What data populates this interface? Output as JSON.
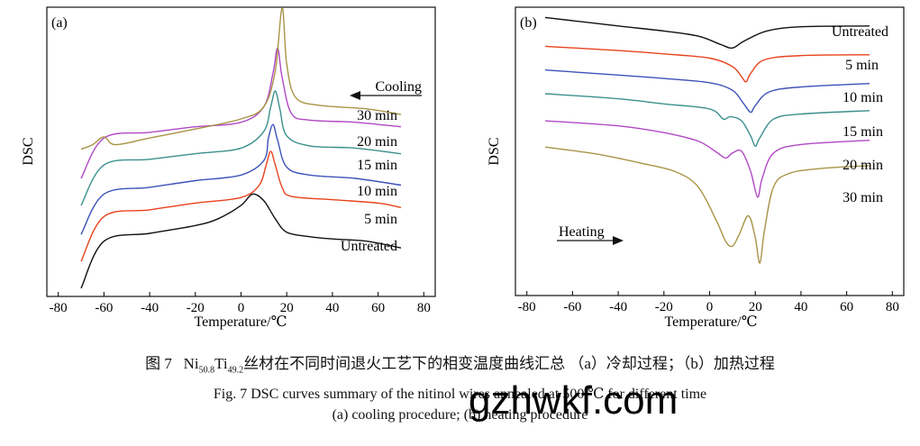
{
  "caption": {
    "cn_prefix": "图 7",
    "cn_formula_ni": "Ni",
    "cn_formula_ni_sub": "50.8",
    "cn_formula_ti": "Ti",
    "cn_formula_ti_sub": "49.2",
    "cn_text": "丝材在不同时间退火工艺下的相变温度曲线汇总 （a）冷却过程；（b）加热过程",
    "en_line1": "Fig. 7    DSC curves summary of the nitinol wires annealed at 500 ℃ for different time",
    "en_line2": "(a)  cooling procedure; (b)  heating procedure"
  },
  "watermark": "gzhwkf.com",
  "chart_data": [
    {
      "panel_label": "(a)",
      "type": "line",
      "xlabel": "Temperature/℃",
      "ylabel": "DSC",
      "xlim": [
        -85,
        85
      ],
      "xticks": [
        -80,
        -60,
        -40,
        -20,
        0,
        20,
        40,
        60,
        80
      ],
      "direction_label": "Cooling",
      "direction_arrow": "left",
      "series": [
        {
          "name": "Untreated",
          "color": "#111111",
          "peak_x": 5,
          "peak_height": 0.9,
          "points": [
            [
              -70,
              -1.2
            ],
            [
              -60,
              0.9
            ],
            [
              -40,
              1.25
            ],
            [
              -20,
              1.6
            ],
            [
              -10,
              1.9
            ],
            [
              0,
              2.5
            ],
            [
              5,
              3.0
            ],
            [
              10,
              2.7
            ],
            [
              15,
              1.9
            ],
            [
              20,
              1.3
            ],
            [
              30,
              1.1
            ],
            [
              40,
              1.0
            ],
            [
              55,
              0.9
            ],
            [
              70,
              0.6
            ]
          ]
        },
        {
          "name": "5 min",
          "color": "#e8421c",
          "peak_x": 13,
          "peak_height": 1.55,
          "points": [
            [
              -70,
              0.0
            ],
            [
              -60,
              2.0
            ],
            [
              -40,
              2.3
            ],
            [
              -20,
              2.6
            ],
            [
              0,
              2.85
            ],
            [
              8,
              3.4
            ],
            [
              11,
              4.3
            ],
            [
              13,
              4.9
            ],
            [
              15,
              4.3
            ],
            [
              18,
              3.3
            ],
            [
              22,
              2.9
            ],
            [
              40,
              2.75
            ],
            [
              60,
              2.6
            ],
            [
              70,
              2.4
            ]
          ]
        },
        {
          "name": "10 min",
          "color": "#3c53b8",
          "peak_x": 14,
          "peak_height": 1.85,
          "points": [
            [
              -70,
              1.2
            ],
            [
              -60,
              3.0
            ],
            [
              -40,
              3.3
            ],
            [
              -20,
              3.6
            ],
            [
              0,
              3.85
            ],
            [
              10,
              4.5
            ],
            [
              12,
              5.5
            ],
            [
              14,
              6.1
            ],
            [
              16,
              5.4
            ],
            [
              20,
              4.2
            ],
            [
              30,
              3.85
            ],
            [
              50,
              3.7
            ],
            [
              70,
              3.4
            ]
          ]
        },
        {
          "name": "15 min",
          "color": "#3a8f8c",
          "peak_x": 15,
          "peak_height": 2.35,
          "points": [
            [
              -70,
              2.5
            ],
            [
              -60,
              4.3
            ],
            [
              -40,
              4.55
            ],
            [
              -20,
              4.8
            ],
            [
              0,
              5.05
            ],
            [
              10,
              5.8
            ],
            [
              13,
              6.9
            ],
            [
              15,
              7.6
            ],
            [
              17,
              6.8
            ],
            [
              20,
              5.6
            ],
            [
              30,
              5.15
            ],
            [
              50,
              5.05
            ],
            [
              70,
              4.8
            ]
          ]
        },
        {
          "name": "20 min",
          "color": "#b149c4",
          "peak_x": 16,
          "peak_height": 3.1,
          "points": [
            [
              -70,
              3.7
            ],
            [
              -60,
              5.5
            ],
            [
              -40,
              5.75
            ],
            [
              -20,
              6.0
            ],
            [
              0,
              6.2
            ],
            [
              10,
              6.9
            ],
            [
              14,
              8.4
            ],
            [
              16,
              9.5
            ],
            [
              18,
              8.2
            ],
            [
              22,
              6.6
            ],
            [
              30,
              6.3
            ],
            [
              50,
              6.2
            ],
            [
              70,
              6.0
            ]
          ]
        },
        {
          "name": "30 min",
          "color": "#a89446",
          "peak_x": 18,
          "peak_height": 4.6,
          "points": [
            [
              -70,
              5.0
            ],
            [
              -65,
              5.2
            ],
            [
              -60,
              5.55
            ],
            [
              -55,
              5.2
            ],
            [
              -40,
              5.5
            ],
            [
              -20,
              5.9
            ],
            [
              0,
              6.35
            ],
            [
              10,
              6.9
            ],
            [
              15,
              8.5
            ],
            [
              18,
              11.3
            ],
            [
              20,
              8.8
            ],
            [
              24,
              7.3
            ],
            [
              35,
              6.95
            ],
            [
              55,
              6.8
            ],
            [
              70,
              6.55
            ]
          ]
        }
      ]
    },
    {
      "panel_label": "(b)",
      "type": "line",
      "xlabel": "Temperature/℃",
      "ylabel": "DSC",
      "xlim": [
        -85,
        85
      ],
      "xticks": [
        -80,
        -60,
        -40,
        -20,
        0,
        20,
        40,
        60,
        80
      ],
      "direction_label": "Heating",
      "direction_arrow": "right",
      "series": [
        {
          "name": "Untreated",
          "color": "#111111",
          "trough_x": 10,
          "points": [
            [
              -72,
              10.4
            ],
            [
              -40,
              9.9
            ],
            [
              -20,
              9.6
            ],
            [
              -5,
              9.3
            ],
            [
              5,
              8.8
            ],
            [
              10,
              8.6
            ],
            [
              15,
              9.0
            ],
            [
              25,
              9.6
            ],
            [
              40,
              9.85
            ],
            [
              70,
              9.9
            ]
          ]
        },
        {
          "name": "5 min",
          "color": "#e8421c",
          "trough_x": 16,
          "points": [
            [
              -72,
              8.7
            ],
            [
              -40,
              8.45
            ],
            [
              -20,
              8.25
            ],
            [
              0,
              8.0
            ],
            [
              10,
              7.5
            ],
            [
              14,
              6.9
            ],
            [
              16,
              6.6
            ],
            [
              18,
              7.1
            ],
            [
              24,
              7.9
            ],
            [
              40,
              8.15
            ],
            [
              70,
              8.2
            ]
          ]
        },
        {
          "name": "10 min",
          "color": "#3c53b8",
          "trough_x": 18,
          "points": [
            [
              -72,
              7.3
            ],
            [
              -40,
              7.0
            ],
            [
              -20,
              6.8
            ],
            [
              0,
              6.55
            ],
            [
              10,
              6.1
            ],
            [
              15,
              5.3
            ],
            [
              18,
              4.8
            ],
            [
              20,
              5.2
            ],
            [
              26,
              6.0
            ],
            [
              40,
              6.3
            ],
            [
              70,
              6.5
            ]
          ]
        },
        {
          "name": "15 min",
          "color": "#3a8f8c",
          "trough_x": 20,
          "points": [
            [
              -72,
              5.9
            ],
            [
              -40,
              5.6
            ],
            [
              -20,
              5.3
            ],
            [
              0,
              5.0
            ],
            [
              6,
              4.4
            ],
            [
              9,
              4.55
            ],
            [
              14,
              4.3
            ],
            [
              18,
              3.4
            ],
            [
              20,
              2.8
            ],
            [
              22,
              3.3
            ],
            [
              28,
              4.4
            ],
            [
              40,
              4.7
            ],
            [
              70,
              4.9
            ]
          ]
        },
        {
          "name": "20 min",
          "color": "#b149c4",
          "trough_x": 21,
          "points": [
            [
              -72,
              4.3
            ],
            [
              -40,
              4.0
            ],
            [
              -20,
              3.6
            ],
            [
              -5,
              3.1
            ],
            [
              3,
              2.45
            ],
            [
              7,
              2.1
            ],
            [
              10,
              2.4
            ],
            [
              14,
              2.5
            ],
            [
              18,
              1.3
            ],
            [
              21,
              -0.2
            ],
            [
              23,
              0.9
            ],
            [
              28,
              2.4
            ],
            [
              40,
              2.9
            ],
            [
              70,
              3.15
            ]
          ]
        },
        {
          "name": "30 min",
          "color": "#a89446",
          "trough_x": 22,
          "points": [
            [
              -72,
              2.75
            ],
            [
              -50,
              2.35
            ],
            [
              -30,
              1.8
            ],
            [
              -15,
              1.3
            ],
            [
              -5,
              0.4
            ],
            [
              3,
              -1.6
            ],
            [
              7,
              -2.8
            ],
            [
              10,
              -3.1
            ],
            [
              13,
              -2.4
            ],
            [
              17,
              -1.3
            ],
            [
              20,
              -2.6
            ],
            [
              22,
              -4.1
            ],
            [
              24,
              -2.2
            ],
            [
              28,
              0.4
            ],
            [
              35,
              1.2
            ],
            [
              50,
              1.5
            ],
            [
              70,
              1.65
            ]
          ]
        }
      ]
    }
  ]
}
